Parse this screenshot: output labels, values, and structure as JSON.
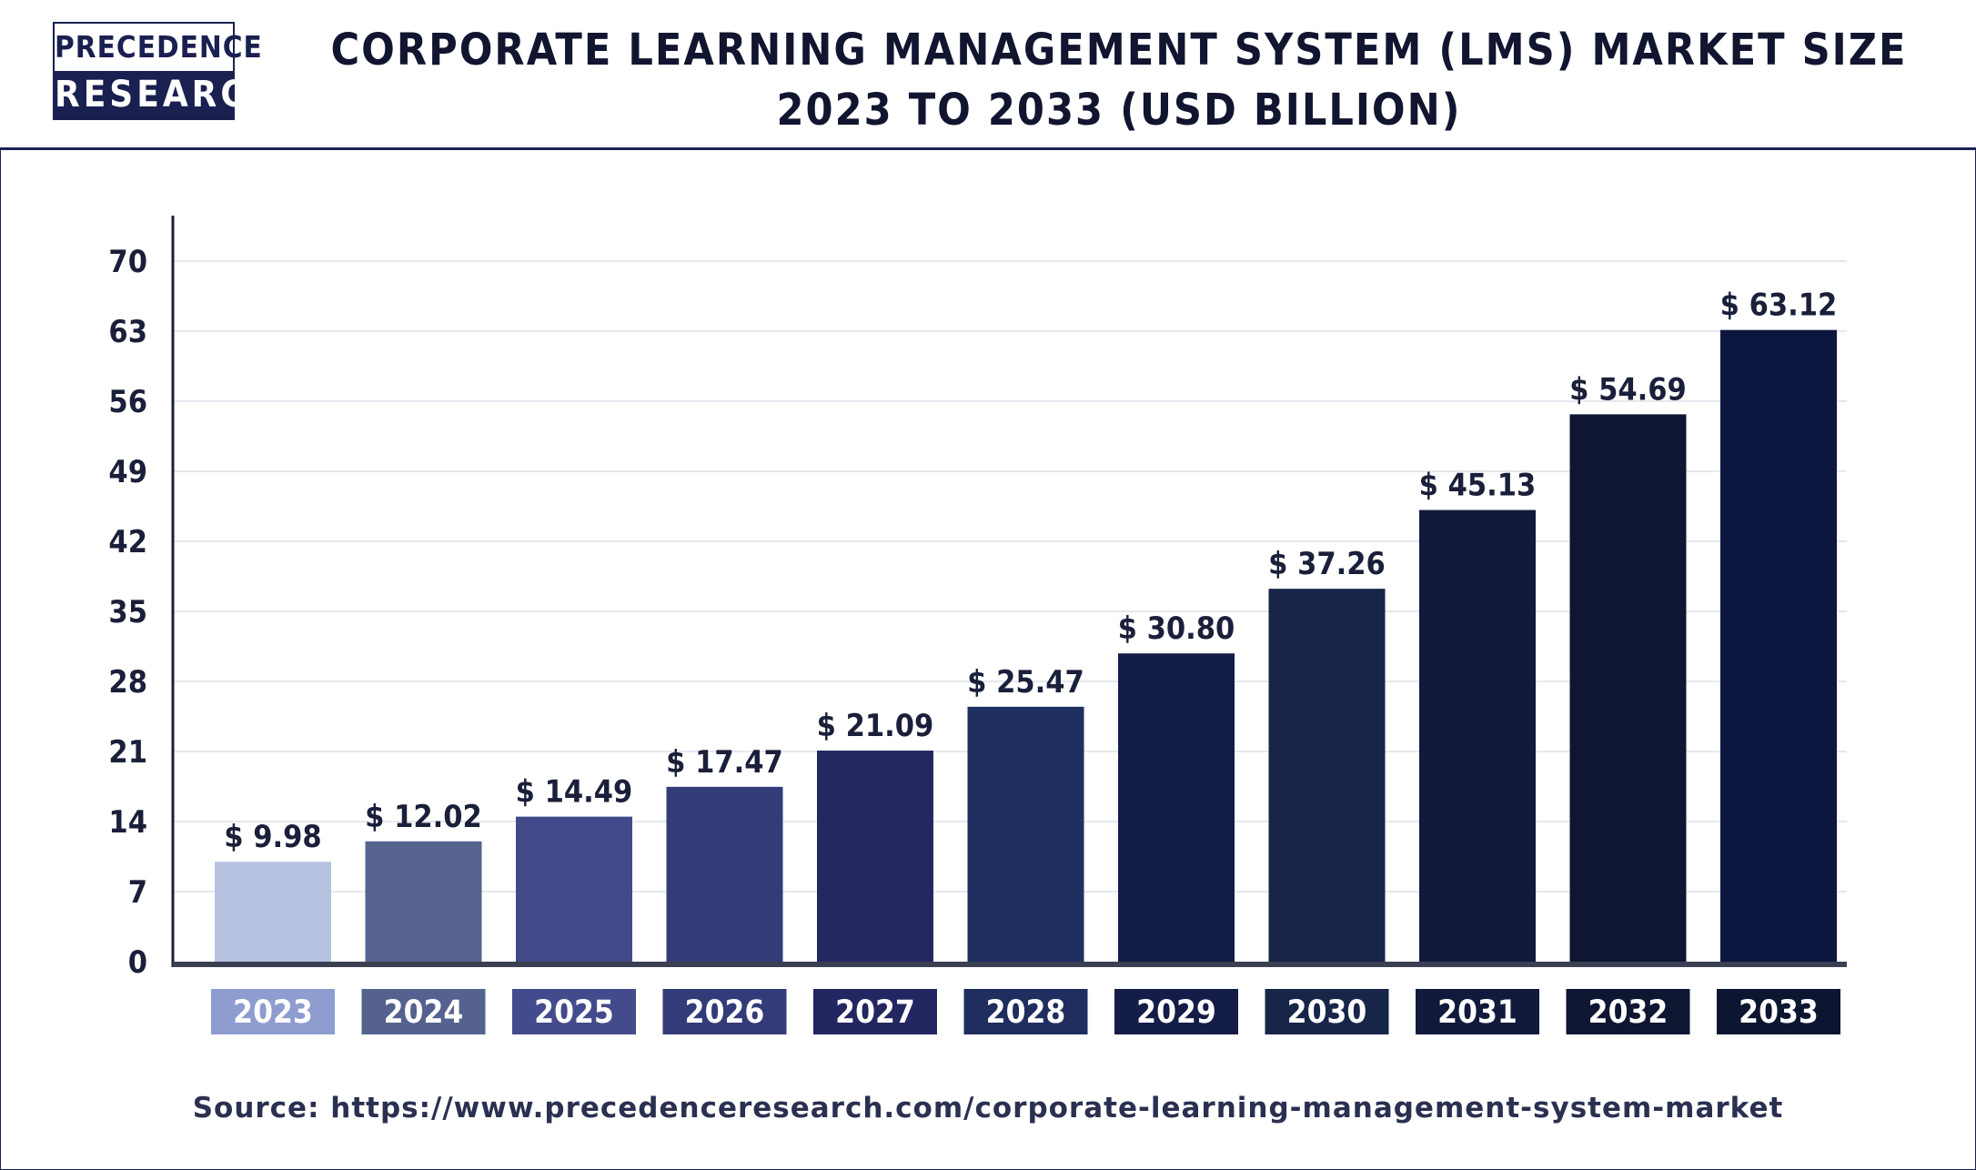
{
  "logo": {
    "line1": "PRECEDENCE",
    "line2": "RESEARCH"
  },
  "title": "CORPORATE LEARNING MANAGEMENT SYSTEM (LMS) MARKET SIZE 2023 TO 2033 (USD BILLION)",
  "source": "Source: https://www.precedenceresearch.com/corporate-learning-management-system-market",
  "chart_data": {
    "type": "bar",
    "categories": [
      "2023",
      "2024",
      "2025",
      "2026",
      "2027",
      "2028",
      "2029",
      "2030",
      "2031",
      "2032",
      "2033"
    ],
    "values": [
      9.98,
      12.02,
      14.49,
      17.47,
      21.09,
      25.47,
      30.8,
      37.26,
      45.13,
      54.69,
      63.12
    ],
    "value_labels": [
      "$ 9.98",
      "$ 12.02",
      "$ 14.49",
      "$ 17.47",
      "$ 21.09",
      "$ 25.47",
      "$ 30.80",
      "$ 37.26",
      "$ 45.13",
      "$ 54.69",
      "$ 63.12"
    ],
    "bar_colors": [
      "#b7c2e0",
      "#56628f",
      "#434a8a",
      "#333c78",
      "#252860",
      "#1f3060",
      "#141c48",
      "#172548",
      "#111a3c",
      "#0e1632",
      "#0d163e"
    ],
    "label_box_colors": [
      "#8e9cd0",
      "#55628f",
      "#444b8c",
      "#333c78",
      "#232660",
      "#1f2e5e",
      "#141c48",
      "#172548",
      "#111a3c",
      "#0e1632",
      "#0d1630"
    ],
    "yticks": [
      0,
      7,
      14,
      21,
      28,
      35,
      42,
      49,
      56,
      63,
      70
    ],
    "ylim": [
      0,
      70
    ],
    "grid": true,
    "xlabel": "",
    "ylabel": ""
  }
}
